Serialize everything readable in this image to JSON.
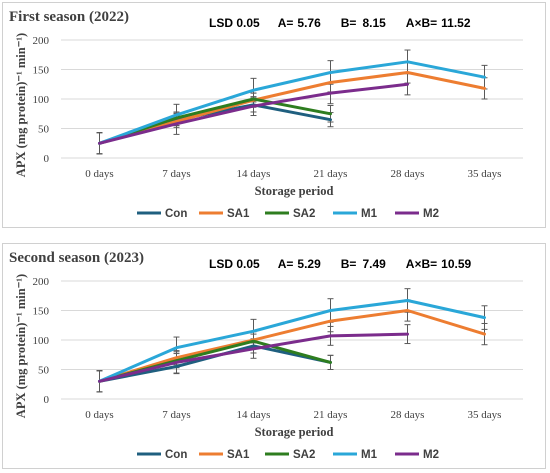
{
  "chart_data": [
    {
      "type": "line",
      "title": "First season (2022)",
      "lsd": {
        "label": "LSD 0.05",
        "a_label": "A=",
        "a_value": "5.76",
        "b_label": "B=",
        "b_value": "8.15",
        "axb_label": "A×B=",
        "axb_value": "11.52"
      },
      "xlabel": "Storage period",
      "ylabel": "APX (mg protein)⁻¹ min⁻¹)",
      "categories": [
        "0 days",
        "7 days",
        "14 days",
        "21 days",
        "28 days",
        "35 days"
      ],
      "ylim": [
        0,
        200
      ],
      "yticks": [
        "0",
        "50",
        "100",
        "150",
        "200"
      ],
      "grid": true,
      "legend_position": "bottom",
      "series": [
        {
          "name": "Con",
          "color": "#1f5f7f",
          "values": [
            25,
            65,
            90,
            65,
            null,
            null
          ],
          "errors": [
            18,
            10,
            12,
            12,
            null,
            null
          ]
        },
        {
          "name": "SA1",
          "color": "#ed7d31",
          "values": [
            25,
            62,
            98,
            128,
            145,
            118
          ],
          "errors": [
            18,
            10,
            12,
            16,
            18,
            18
          ]
        },
        {
          "name": "SA2",
          "color": "#2e7d1f",
          "values": [
            25,
            68,
            100,
            75,
            null,
            null
          ],
          "errors": [
            18,
            10,
            10,
            14,
            null,
            null
          ]
        },
        {
          "name": "M1",
          "color": "#2aa7d8",
          "values": [
            25,
            73,
            115,
            145,
            163,
            137
          ],
          "errors": [
            18,
            18,
            20,
            20,
            20,
            20
          ]
        },
        {
          "name": "M2",
          "color": "#7b2c8c",
          "values": [
            25,
            58,
            88,
            110,
            125,
            null
          ],
          "errors": [
            18,
            18,
            16,
            18,
            18,
            null
          ]
        }
      ]
    },
    {
      "type": "line",
      "title": "Second season (2023)",
      "lsd": {
        "label": "LSD 0.05",
        "a_label": "A=",
        "a_value": "5.29",
        "b_label": "B=",
        "b_value": "7.49",
        "axb_label": "A×B=",
        "axb_value": "10.59"
      },
      "xlabel": "Storage period",
      "ylabel": "APX (mg protein)⁻¹ min⁻¹)",
      "categories": [
        "0 days",
        "7 days",
        "14 days",
        "21 days",
        "28 days",
        "35 days"
      ],
      "ylim": [
        0,
        200
      ],
      "yticks": [
        "0",
        "50",
        "100",
        "150",
        "200"
      ],
      "grid": true,
      "legend_position": "bottom",
      "series": [
        {
          "name": "Con",
          "color": "#1f5f7f",
          "values": [
            30,
            55,
            90,
            62,
            null,
            null
          ],
          "errors": [
            18,
            12,
            12,
            12,
            null,
            null
          ]
        },
        {
          "name": "SA1",
          "color": "#ed7d31",
          "values": [
            30,
            70,
            100,
            132,
            150,
            110
          ],
          "errors": [
            18,
            12,
            14,
            18,
            18,
            18
          ]
        },
        {
          "name": "SA2",
          "color": "#2e7d1f",
          "values": [
            30,
            65,
            98,
            62,
            null,
            null
          ],
          "errors": [
            18,
            12,
            12,
            12,
            null,
            null
          ]
        },
        {
          "name": "M1",
          "color": "#2aa7d8",
          "values": [
            30,
            87,
            115,
            150,
            167,
            138
          ],
          "errors": [
            18,
            18,
            20,
            20,
            20,
            20
          ]
        },
        {
          "name": "M2",
          "color": "#7b2c8c",
          "values": [
            30,
            62,
            85,
            107,
            110,
            null
          ],
          "errors": [
            18,
            18,
            16,
            16,
            16,
            null
          ]
        }
      ]
    }
  ]
}
